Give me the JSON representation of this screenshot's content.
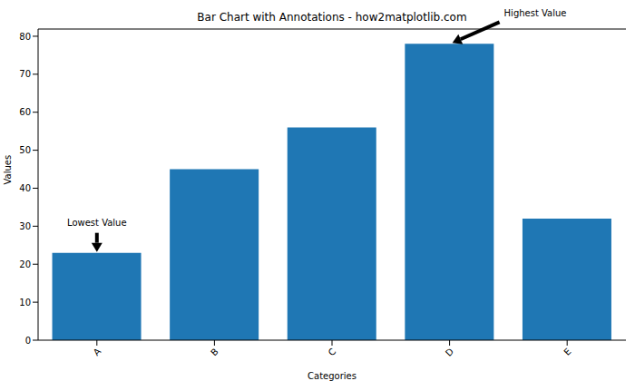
{
  "chart_data": {
    "type": "bar",
    "title": "Bar Chart with Annotations - how2matplotlib.com",
    "x_label": "Categories",
    "y_label": "Values",
    "categories": [
      "A",
      "B",
      "C",
      "D",
      "E"
    ],
    "values": [
      23,
      45,
      56,
      78,
      32
    ],
    "color": "#1f77b4",
    "ylim": [
      0,
      81.9
    ],
    "yticks": [
      0,
      10,
      20,
      30,
      40,
      50,
      60,
      70,
      80
    ],
    "annotations": [
      {
        "text": "Lowest Value",
        "category": "A"
      },
      {
        "text": "Highest Value",
        "category": "D"
      }
    ]
  }
}
